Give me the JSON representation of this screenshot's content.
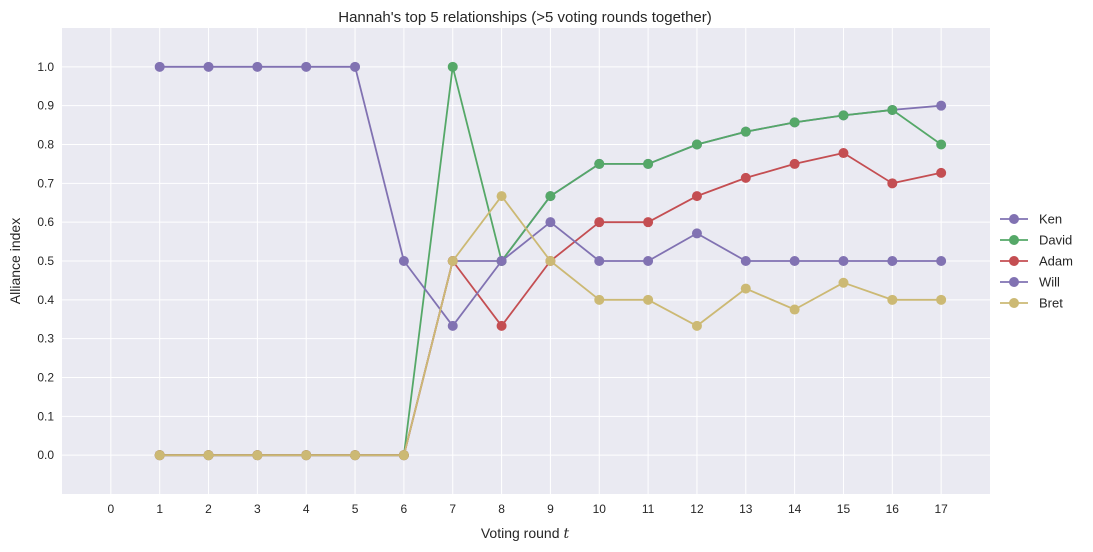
{
  "chart_data": {
    "type": "line",
    "title": "Hannah's top 5 relationships (>5 voting rounds together)",
    "xlabel": "Voting round",
    "xlabel_var": "t",
    "ylabel": "Alliance index",
    "xlim": [
      -1,
      18
    ],
    "ylim": [
      -0.1,
      1.1
    ],
    "x_ticks": [
      0,
      1,
      2,
      3,
      4,
      5,
      6,
      7,
      8,
      9,
      10,
      11,
      12,
      13,
      14,
      15,
      16,
      17
    ],
    "y_ticks": [
      0.0,
      0.1,
      0.2,
      0.3,
      0.4,
      0.5,
      0.6,
      0.7,
      0.8,
      0.9,
      1.0
    ],
    "y_tick_labels": [
      "0.0",
      "0.1",
      "0.2",
      "0.3",
      "0.4",
      "0.5",
      "0.6",
      "0.7",
      "0.8",
      "0.9",
      "1.0"
    ],
    "grid": true,
    "legend_position": "right",
    "background": "#eaeaf2",
    "series": [
      {
        "name": "Ken",
        "color": "#8172b2",
        "x": [
          1,
          2,
          3,
          4,
          5,
          6,
          7,
          8,
          9,
          10,
          11,
          12,
          13,
          14,
          15,
          16,
          17
        ],
        "values": [
          0,
          0,
          0,
          0,
          0,
          0,
          0.5,
          0.5,
          0.667,
          0.75,
          0.75,
          0.8,
          0.833,
          0.857,
          0.875,
          0.889,
          0.9
        ]
      },
      {
        "name": "David",
        "color": "#55a868",
        "x": [
          1,
          2,
          3,
          4,
          5,
          6,
          7,
          8,
          9,
          10,
          11,
          12,
          13,
          14,
          15,
          16,
          17
        ],
        "values": [
          0,
          0,
          0,
          0,
          0,
          0,
          1.0,
          0.5,
          0.667,
          0.75,
          0.75,
          0.8,
          0.833,
          0.857,
          0.875,
          0.889,
          0.8
        ]
      },
      {
        "name": "Adam",
        "color": "#c44e52",
        "x": [
          1,
          2,
          3,
          4,
          5,
          6,
          7,
          8,
          9,
          10,
          11,
          12,
          13,
          14,
          15,
          16,
          17
        ],
        "values": [
          0,
          0,
          0,
          0,
          0,
          0,
          0.5,
          0.333,
          0.5,
          0.6,
          0.6,
          0.667,
          0.714,
          0.75,
          0.778,
          0.7,
          0.727
        ]
      },
      {
        "name": "Will",
        "color": "#8172b2",
        "x": [
          1,
          2,
          3,
          4,
          5,
          6,
          7,
          8,
          9,
          10,
          11,
          12,
          13,
          14,
          15,
          16,
          17
        ],
        "values": [
          1.0,
          1.0,
          1.0,
          1.0,
          1.0,
          0.5,
          0.333,
          0.5,
          0.6,
          0.5,
          0.5,
          0.571,
          0.5,
          0.5,
          0.5,
          0.5,
          0.5
        ]
      },
      {
        "name": "Bret",
        "color": "#ccb974",
        "x": [
          1,
          2,
          3,
          4,
          5,
          6,
          7,
          8,
          9,
          10,
          11,
          12,
          13,
          14,
          15,
          16,
          17
        ],
        "values": [
          0,
          0,
          0,
          0,
          0,
          0,
          0.5,
          0.667,
          0.5,
          0.4,
          0.4,
          0.333,
          0.429,
          0.375,
          0.444,
          0.4,
          0.4
        ]
      }
    ]
  }
}
